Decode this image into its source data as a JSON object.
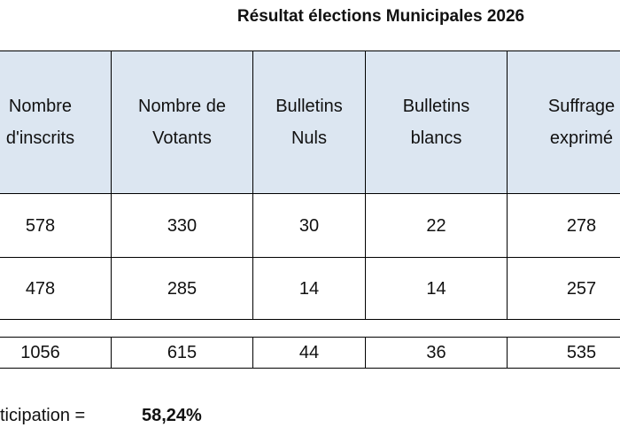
{
  "title": "Résultat élections Municipales 2026",
  "table": {
    "header": [
      "Nombre\nd'inscrits",
      "Nombre de\nVotants",
      "Bulletins\nNuls",
      "Bulletins\nblancs",
      "Suffrage\nexprimé"
    ],
    "rows": [
      [
        578,
        330,
        30,
        22,
        278
      ],
      [
        478,
        285,
        14,
        14,
        257
      ]
    ],
    "total": [
      1056,
      615,
      44,
      36,
      535
    ]
  },
  "participation": {
    "label": "ticipation =",
    "value": "58,24%"
  }
}
